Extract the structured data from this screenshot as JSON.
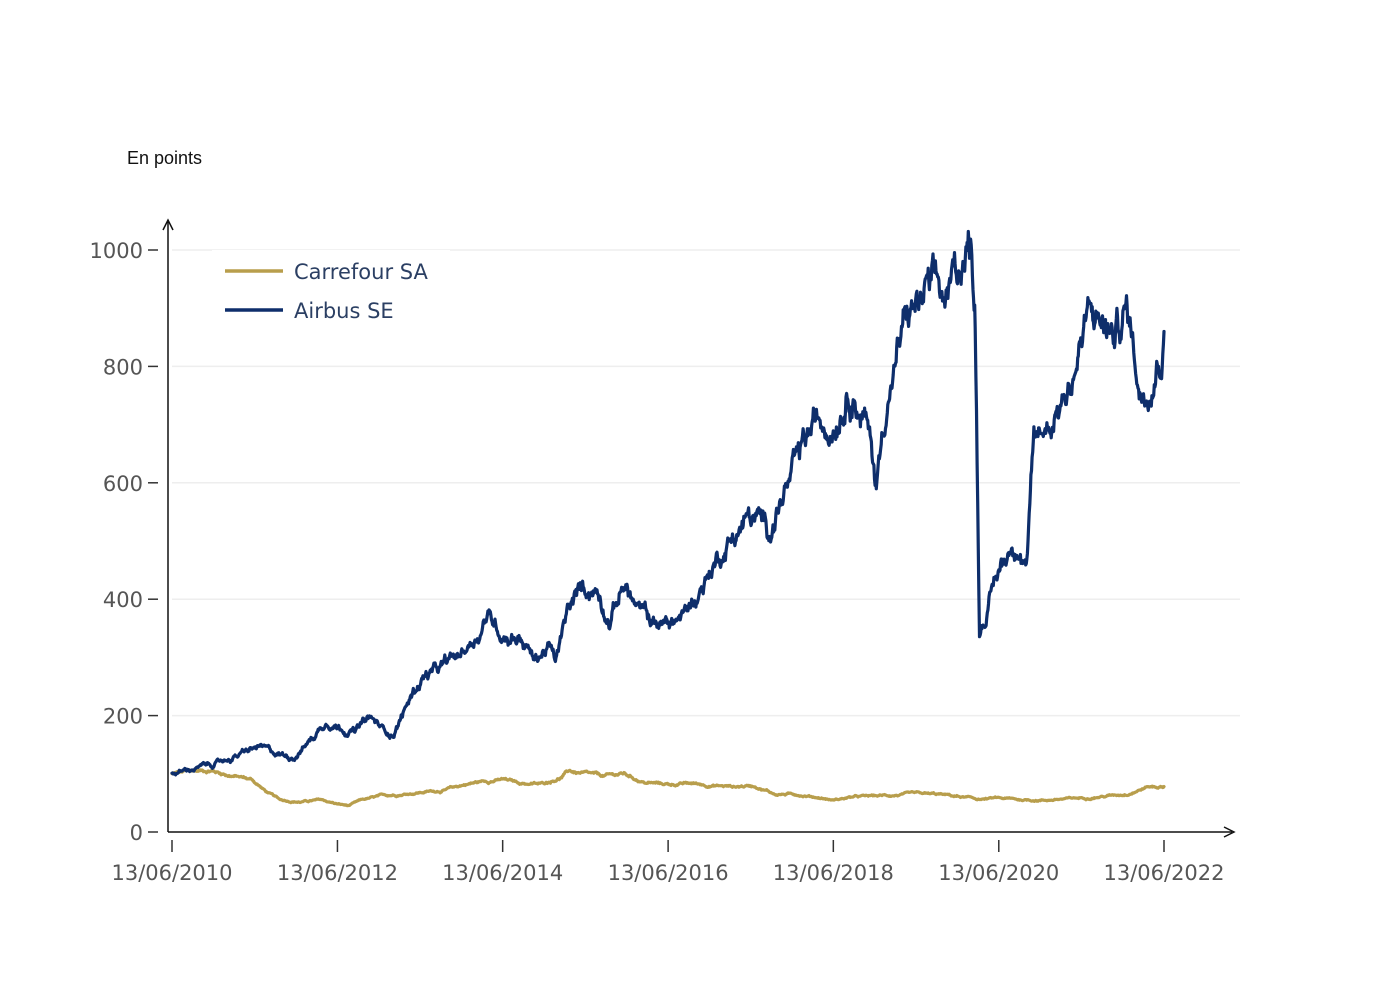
{
  "chart_data": {
    "type": "line",
    "unit_label": "En points",
    "x_tick_labels": [
      "13/06/2010",
      "13/06/2012",
      "13/06/2014",
      "13/06/2016",
      "13/06/2018",
      "13/06/2020",
      "13/06/2022"
    ],
    "y_ticks": [
      0,
      200,
      400,
      600,
      800,
      1000
    ],
    "ylim": [
      0,
      1000
    ],
    "xlim": [
      "2010-06-13",
      "2022-06-13"
    ],
    "grid": "horizontal",
    "legend_position": "top-left",
    "series": [
      {
        "name": "Carrefour SA",
        "color": "#b89e4c",
        "points": [
          [
            "2010-06-13",
            100
          ],
          [
            "2010-09-01",
            104
          ],
          [
            "2010-12-01",
            106
          ],
          [
            "2011-02-01",
            100
          ],
          [
            "2011-04-01",
            95
          ],
          [
            "2011-06-01",
            90
          ],
          [
            "2011-08-01",
            70
          ],
          [
            "2011-10-01",
            55
          ],
          [
            "2012-01-01",
            52
          ],
          [
            "2012-04-01",
            55
          ],
          [
            "2012-06-13",
            48
          ],
          [
            "2012-08-01",
            45
          ],
          [
            "2012-10-01",
            55
          ],
          [
            "2013-01-01",
            62
          ],
          [
            "2013-06-01",
            68
          ],
          [
            "2013-10-01",
            72
          ],
          [
            "2014-01-01",
            82
          ],
          [
            "2014-04-01",
            88
          ],
          [
            "2014-06-13",
            90
          ],
          [
            "2014-09-01",
            84
          ],
          [
            "2014-12-01",
            82
          ],
          [
            "2015-03-01",
            95
          ],
          [
            "2015-04-01",
            105
          ],
          [
            "2015-06-01",
            100
          ],
          [
            "2015-09-01",
            95
          ],
          [
            "2015-12-01",
            100
          ],
          [
            "2016-03-01",
            85
          ],
          [
            "2016-06-13",
            82
          ],
          [
            "2016-10-01",
            83
          ],
          [
            "2017-01-01",
            80
          ],
          [
            "2017-04-01",
            78
          ],
          [
            "2017-07-01",
            80
          ],
          [
            "2017-10-01",
            65
          ],
          [
            "2018-01-01",
            65
          ],
          [
            "2018-04-01",
            60
          ],
          [
            "2018-06-13",
            55
          ],
          [
            "2018-09-01",
            60
          ],
          [
            "2019-01-01",
            62
          ],
          [
            "2019-06-01",
            65
          ],
          [
            "2019-10-01",
            64
          ],
          [
            "2020-01-01",
            60
          ],
          [
            "2020-03-20",
            56
          ],
          [
            "2020-06-13",
            58
          ],
          [
            "2020-10-01",
            55
          ],
          [
            "2021-01-01",
            55
          ],
          [
            "2021-06-01",
            58
          ],
          [
            "2021-10-01",
            62
          ],
          [
            "2022-01-01",
            66
          ],
          [
            "2022-04-01",
            78
          ],
          [
            "2022-06-13",
            78
          ]
        ]
      },
      {
        "name": "Airbus SE",
        "color": "#0e2e6b",
        "points": [
          [
            "2010-06-13",
            100
          ],
          [
            "2010-10-01",
            110
          ],
          [
            "2011-01-01",
            118
          ],
          [
            "2011-04-01",
            132
          ],
          [
            "2011-07-01",
            145
          ],
          [
            "2011-09-01",
            135
          ],
          [
            "2011-12-01",
            130
          ],
          [
            "2012-03-01",
            165
          ],
          [
            "2012-05-01",
            195
          ],
          [
            "2012-06-13",
            185
          ],
          [
            "2012-09-01",
            175
          ],
          [
            "2012-11-01",
            195
          ],
          [
            "2013-01-01",
            175
          ],
          [
            "2013-02-15",
            170
          ],
          [
            "2013-05-01",
            230
          ],
          [
            "2013-07-01",
            270
          ],
          [
            "2013-09-01",
            275
          ],
          [
            "2013-12-01",
            300
          ],
          [
            "2014-03-01",
            345
          ],
          [
            "2014-04-01",
            375
          ],
          [
            "2014-06-13",
            345
          ],
          [
            "2014-09-01",
            340
          ],
          [
            "2014-11-01",
            295
          ],
          [
            "2015-01-01",
            320
          ],
          [
            "2015-02-01",
            290
          ],
          [
            "2015-04-01",
            380
          ],
          [
            "2015-06-01",
            415
          ],
          [
            "2015-08-01",
            420
          ],
          [
            "2015-10-01",
            375
          ],
          [
            "2015-12-01",
            430
          ],
          [
            "2016-02-01",
            380
          ],
          [
            "2016-04-01",
            360
          ],
          [
            "2016-06-13",
            355
          ],
          [
            "2016-09-01",
            375
          ],
          [
            "2016-12-01",
            440
          ],
          [
            "2017-03-01",
            500
          ],
          [
            "2017-06-01",
            540
          ],
          [
            "2017-09-01",
            520
          ],
          [
            "2017-11-01",
            580
          ],
          [
            "2018-01-01",
            620
          ],
          [
            "2018-03-01",
            680
          ],
          [
            "2018-06-13",
            720
          ],
          [
            "2018-09-01",
            790
          ],
          [
            "2018-11-01",
            720
          ],
          [
            "2018-12-20",
            600
          ],
          [
            "2019-02-01",
            740
          ],
          [
            "2019-05-01",
            880
          ],
          [
            "2019-08-01",
            920
          ],
          [
            "2019-11-01",
            900
          ],
          [
            "2020-01-01",
            990
          ],
          [
            "2020-02-15",
            1010
          ],
          [
            "2020-03-01",
            900
          ],
          [
            "2020-03-20",
            370
          ],
          [
            "2020-05-01",
            400
          ],
          [
            "2020-06-13",
            450
          ],
          [
            "2020-09-01",
            510
          ],
          [
            "2020-10-15",
            470
          ],
          [
            "2020-11-15",
            660
          ],
          [
            "2021-01-01",
            690
          ],
          [
            "2021-03-01",
            740
          ],
          [
            "2021-05-01",
            780
          ],
          [
            "2021-07-01",
            870
          ],
          [
            "2021-09-01",
            880
          ],
          [
            "2021-11-01",
            850
          ],
          [
            "2022-01-01",
            900
          ],
          [
            "2022-03-01",
            760
          ],
          [
            "2022-05-01",
            820
          ],
          [
            "2022-06-13",
            860
          ]
        ]
      }
    ]
  }
}
